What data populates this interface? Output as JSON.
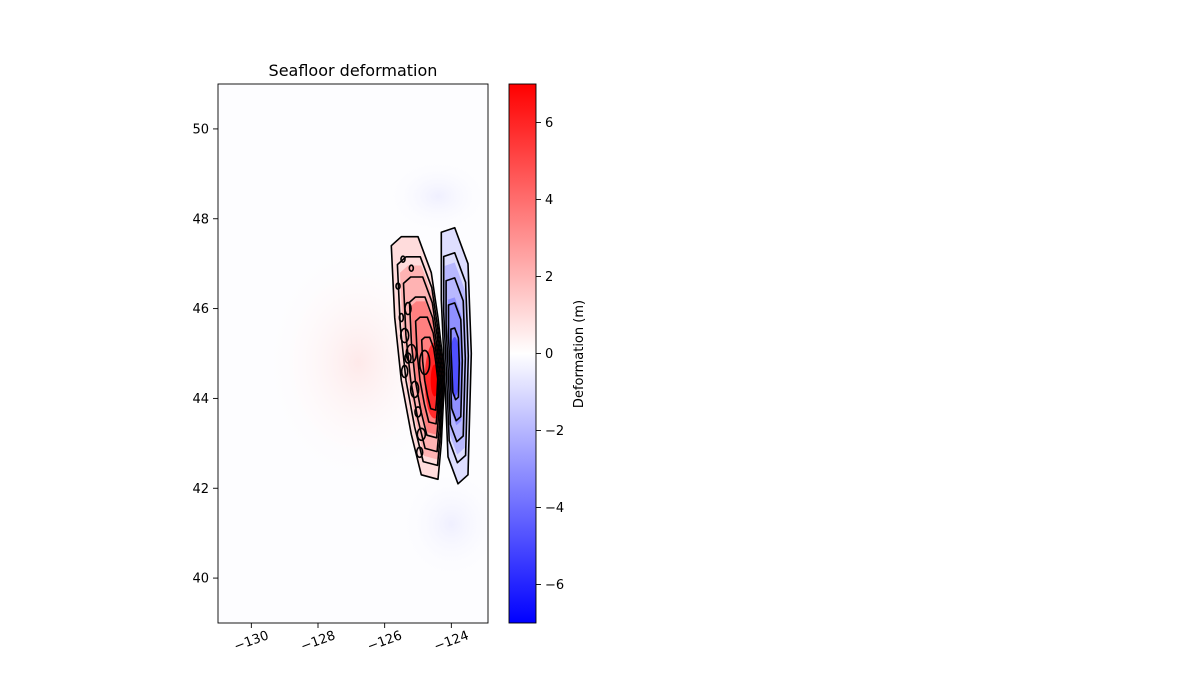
{
  "chart_data": {
    "type": "heatmap",
    "title": "Seafloor deformation",
    "xlabel": "",
    "ylabel": "",
    "xlim": [
      -131,
      -122.9
    ],
    "ylim": [
      39,
      51
    ],
    "x_ticks": [
      -130,
      -128,
      -126,
      -124
    ],
    "x_tick_labels": [
      "−130",
      "−128",
      "−126",
      "−124"
    ],
    "y_ticks": [
      40,
      42,
      44,
      46,
      48,
      50
    ],
    "y_tick_labels": [
      "40",
      "42",
      "44",
      "46",
      "48",
      "50"
    ],
    "colorbar": {
      "label": "Deformation (m)",
      "colormap": "bwr",
      "range": [
        -7,
        7
      ],
      "ticks": [
        -6,
        -4,
        -2,
        0,
        2,
        4,
        6
      ],
      "tick_labels": [
        "−6",
        "−4",
        "−2",
        "0",
        "2",
        "4",
        "6"
      ],
      "color_low": "#0000ff",
      "color_mid": "#ffffff",
      "color_high": "#ff0000"
    },
    "uplift_peak": {
      "lon": -124.5,
      "lat": 44.4,
      "value": 6.5
    },
    "subsidence_peak": {
      "lon": -123.9,
      "lat": 44.7,
      "value": -4.5
    },
    "uplift_zone_outline": [
      [
        -125.8,
        47.4
      ],
      [
        -125.5,
        47.6
      ],
      [
        -125.0,
        47.6
      ],
      [
        -124.6,
        46.8
      ],
      [
        -124.4,
        45.8
      ],
      [
        -124.2,
        44.5
      ],
      [
        -124.3,
        43.0
      ],
      [
        -124.4,
        42.2
      ],
      [
        -124.9,
        42.3
      ],
      [
        -125.2,
        43.2
      ],
      [
        -125.5,
        44.4
      ],
      [
        -125.7,
        45.8
      ],
      [
        -125.8,
        47.4
      ]
    ],
    "subsidence_zone_outline": [
      [
        -124.3,
        47.7
      ],
      [
        -123.9,
        47.8
      ],
      [
        -123.5,
        47.0
      ],
      [
        -123.4,
        45.0
      ],
      [
        -123.5,
        42.3
      ],
      [
        -123.8,
        42.1
      ],
      [
        -124.1,
        42.7
      ],
      [
        -124.2,
        44.5
      ],
      [
        -124.3,
        46.2
      ],
      [
        -124.3,
        47.7
      ]
    ],
    "uplift_contour_levels": [
      0.5,
      1.5,
      2.5,
      3.5,
      4.5,
      5.5
    ],
    "subsidence_contour_levels": [
      -0.5,
      -1.5,
      -2.5,
      -3.5,
      -4.5
    ]
  }
}
